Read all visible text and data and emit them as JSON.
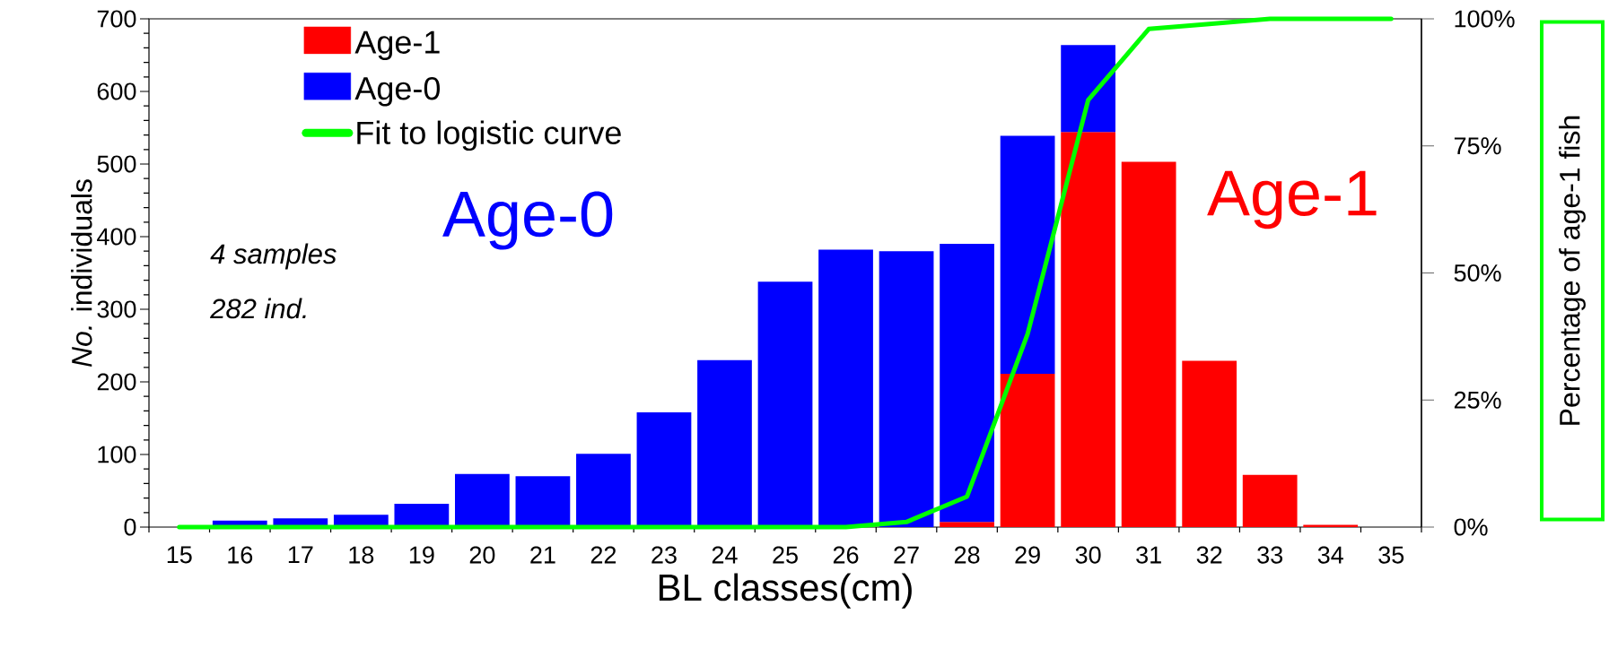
{
  "chart_data": {
    "type": "bar",
    "stacked": true,
    "categories": [
      "15",
      "16",
      "17",
      "18",
      "19",
      "20",
      "21",
      "22",
      "23",
      "24",
      "25",
      "26",
      "27",
      "28",
      "29",
      "30",
      "31",
      "32",
      "33",
      "34",
      "35"
    ],
    "series": [
      {
        "name": "Age-1",
        "color": "#ff0000",
        "values": [
          null,
          null,
          null,
          null,
          null,
          null,
          null,
          null,
          null,
          null,
          null,
          null,
          null,
          7,
          211,
          544,
          503,
          229,
          72,
          3,
          null
        ]
      },
      {
        "name": "Age-0",
        "color": "#0000ff",
        "values": [
          null,
          9,
          12,
          17,
          32,
          73,
          70,
          101,
          158,
          230,
          338,
          382,
          380,
          383,
          328,
          120,
          null,
          null,
          null,
          null,
          null
        ]
      },
      {
        "name": "Fit to logistic curve",
        "type": "line",
        "axis": "y2",
        "color": "#00ff00",
        "values": [
          0,
          0,
          0,
          0,
          0,
          0,
          0,
          0,
          0,
          0,
          0,
          0,
          1,
          6,
          38,
          84,
          98,
          99,
          100,
          100,
          100
        ]
      }
    ],
    "xlabel": "BL classes(cm)",
    "ylabel": "*No.* individuals",
    "y2label": "Percentage of age-1 fish",
    "ylim": [
      0,
      700
    ],
    "yticks": [
      0,
      100,
      200,
      300,
      400,
      500,
      600,
      700
    ],
    "y2lim": [
      0,
      100
    ],
    "y2ticks": [
      {
        "value": 0,
        "label": "0%"
      },
      {
        "value": 25,
        "label": "25%"
      },
      {
        "value": 50,
        "label": "50%"
      },
      {
        "value": 75,
        "label": "75%"
      },
      {
        "value": 100,
        "label": "100%"
      }
    ],
    "legend": "top left",
    "grid": false,
    "annotations": [
      "4 samples",
      "282 ind.",
      "Age-0",
      "Age-1"
    ]
  }
}
